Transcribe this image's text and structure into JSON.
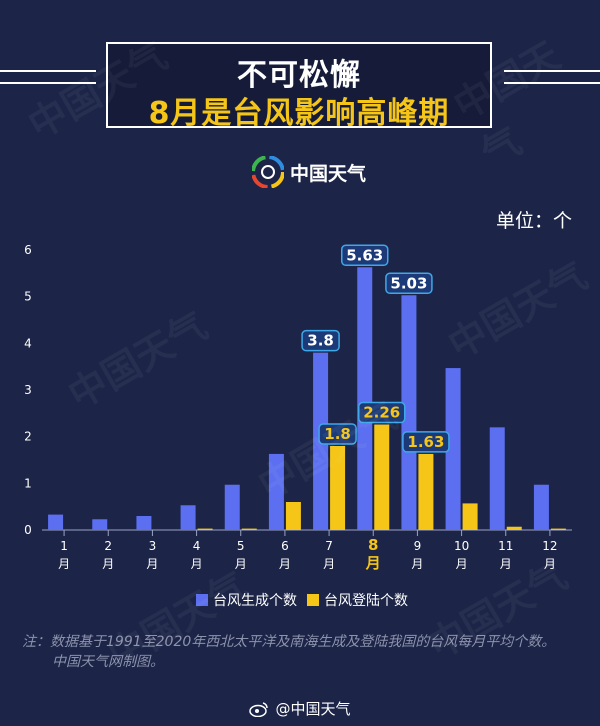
{
  "header": {
    "title_line1": "不可松懈",
    "title_line2": "8月是台风影响高峰期",
    "brand": "中国天气",
    "unit": "单位：个"
  },
  "colors": {
    "background": "#1c2447",
    "series_generated": "#5b6ff0",
    "series_landed": "#f5c518",
    "label_bg": "#1d3a78",
    "label_border": "#3fa8e8"
  },
  "chart_data": {
    "type": "bar",
    "categories": [
      "1\n月",
      "2\n月",
      "3\n月",
      "4\n月",
      "5\n月",
      "6\n月",
      "7\n月",
      "8\n月",
      "9\n月",
      "10\n月",
      "11\n月",
      "12\n月"
    ],
    "highlight_category_index": 7,
    "ylim": [
      0,
      6
    ],
    "yticks": [
      0,
      1,
      2,
      3,
      4,
      5,
      6
    ],
    "series": [
      {
        "name": "台风生成个数",
        "values": [
          0.33,
          0.23,
          0.3,
          0.53,
          0.97,
          1.63,
          3.8,
          5.63,
          5.03,
          3.47,
          2.2,
          0.97
        ],
        "labels": [
          "",
          "",
          "",
          "",
          "",
          "",
          "3.8",
          "5.63",
          "5.03",
          "",
          "",
          ""
        ]
      },
      {
        "name": "台风登陆个数",
        "values": [
          0,
          0,
          0,
          0.03,
          0.03,
          0.6,
          1.8,
          2.26,
          1.63,
          0.57,
          0.07,
          0.03
        ],
        "labels": [
          "",
          "",
          "",
          "",
          "",
          "",
          "1.8",
          "2.26",
          "1.63",
          "",
          "",
          ""
        ]
      }
    ],
    "legend_position": "bottom"
  },
  "note": {
    "line1": "注：数据基于1991至2020年西北太平洋及南海生成及登陆我国的台风每月平均个数。",
    "line2": "中国天气网制图。"
  },
  "footer": {
    "text": "@中国天气"
  },
  "watermark": "中国天气"
}
